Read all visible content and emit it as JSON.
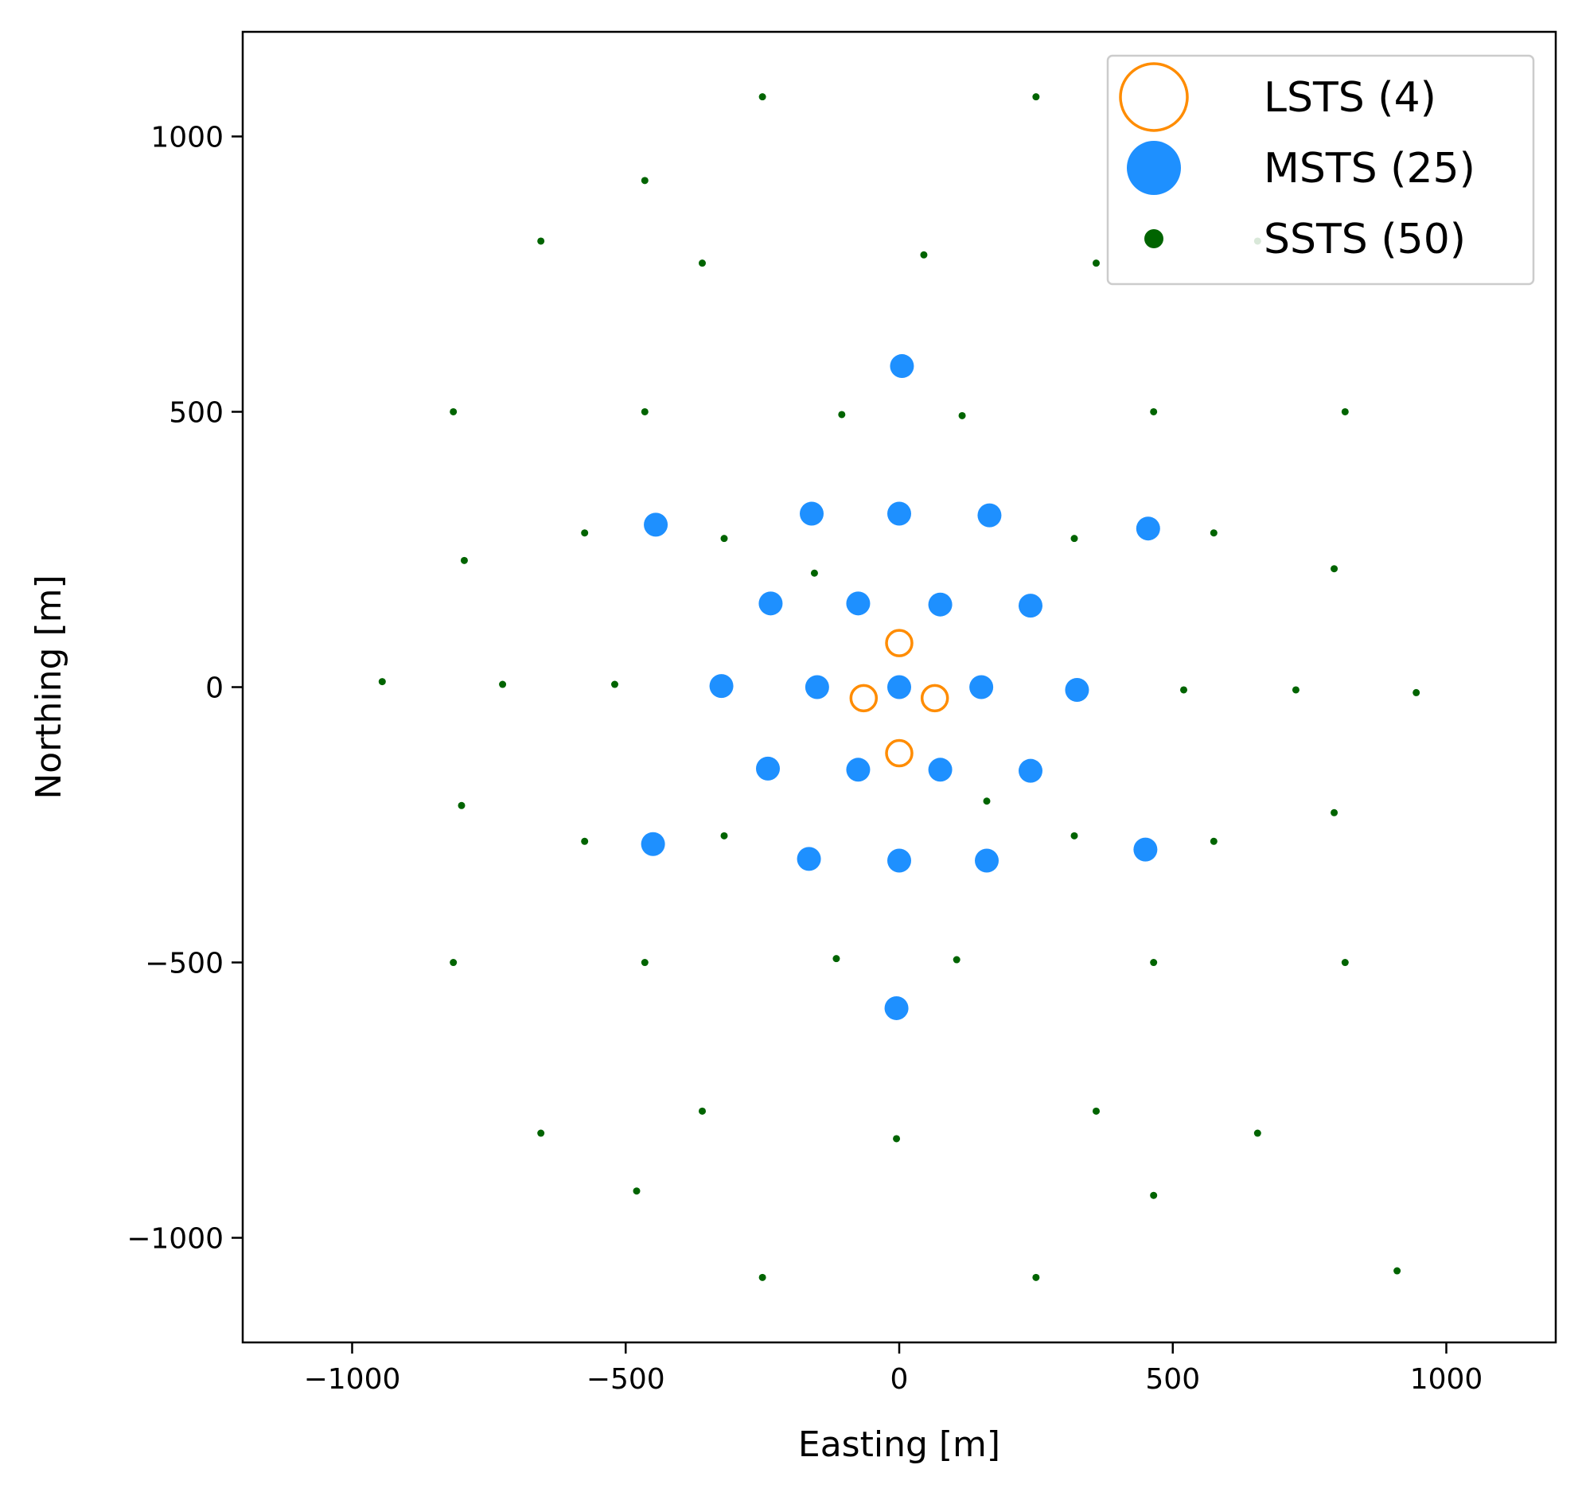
{
  "chart_data": {
    "type": "scatter",
    "title": "",
    "xlabel": "Easting [m]",
    "ylabel": "Northing [m]",
    "xlim": [
      -1200,
      1200
    ],
    "ylim": [
      -1190,
      1190
    ],
    "xticks": [
      -1000,
      -500,
      0,
      500,
      1000
    ],
    "yticks": [
      -1000,
      -500,
      0,
      500,
      1000
    ],
    "xtick_labels": [
      "−1000",
      "−500",
      "0",
      "500",
      "1000"
    ],
    "ytick_labels": [
      "−1000",
      "−500",
      "0",
      "500",
      "1000"
    ],
    "grid": false,
    "legend_position": "top-right",
    "series": [
      {
        "name": "LSTS (4)",
        "marker": "hollow-circle-large",
        "color": "#ff8c00",
        "points": [
          [
            0,
            80
          ],
          [
            -65,
            -20
          ],
          [
            65,
            -20
          ],
          [
            0,
            -120
          ]
        ]
      },
      {
        "name": "MSTS (25)",
        "marker": "filled-circle-medium",
        "color": "#1e90ff",
        "points": [
          [
            0,
            0
          ],
          [
            150,
            0
          ],
          [
            -150,
            0
          ],
          [
            325,
            -5
          ],
          [
            -325,
            2
          ],
          [
            75,
            150
          ],
          [
            -75,
            152
          ],
          [
            240,
            148
          ],
          [
            -235,
            152
          ],
          [
            75,
            -150
          ],
          [
            -75,
            -150
          ],
          [
            240,
            -152
          ],
          [
            -240,
            -148
          ],
          [
            0,
            315
          ],
          [
            165,
            312
          ],
          [
            -160,
            315
          ],
          [
            455,
            288
          ],
          [
            -445,
            295
          ],
          [
            0,
            -315
          ],
          [
            160,
            -315
          ],
          [
            -165,
            -312
          ],
          [
            450,
            -295
          ],
          [
            -450,
            -285
          ],
          [
            5,
            583
          ],
          [
            -5,
            -583
          ]
        ]
      },
      {
        "name": "SSTS (50)",
        "marker": "dot-small",
        "color": "#006400",
        "points": [
          [
            -250,
            1072
          ],
          [
            250,
            1072
          ],
          [
            -465,
            920
          ],
          [
            -655,
            810
          ],
          [
            -360,
            770
          ],
          [
            45,
            785
          ],
          [
            360,
            770
          ],
          [
            655,
            810
          ],
          [
            -815,
            500
          ],
          [
            -465,
            500
          ],
          [
            -105,
            495
          ],
          [
            115,
            493
          ],
          [
            465,
            500
          ],
          [
            815,
            500
          ],
          [
            -575,
            280
          ],
          [
            -320,
            270
          ],
          [
            320,
            270
          ],
          [
            575,
            280
          ],
          [
            -795,
            230
          ],
          [
            -155,
            207
          ],
          [
            795,
            215
          ],
          [
            -945,
            10
          ],
          [
            -725,
            5
          ],
          [
            -520,
            5
          ],
          [
            520,
            -5
          ],
          [
            725,
            -5
          ],
          [
            945,
            -10
          ],
          [
            -800,
            -215
          ],
          [
            160,
            -207
          ],
          [
            795,
            -228
          ],
          [
            -575,
            -280
          ],
          [
            -320,
            -270
          ],
          [
            320,
            -270
          ],
          [
            575,
            -280
          ],
          [
            -815,
            -500
          ],
          [
            -465,
            -500
          ],
          [
            -115,
            -493
          ],
          [
            105,
            -495
          ],
          [
            465,
            -500
          ],
          [
            815,
            -500
          ],
          [
            -360,
            -770
          ],
          [
            360,
            -770
          ],
          [
            -655,
            -810
          ],
          [
            655,
            -810
          ],
          [
            -5,
            -820
          ],
          [
            -480,
            -915
          ],
          [
            465,
            -923
          ],
          [
            -250,
            -1072
          ],
          [
            250,
            -1072
          ],
          [
            910,
            -1060
          ]
        ]
      }
    ]
  },
  "colors": {
    "lsts": "#ff8c00",
    "msts": "#1e90ff",
    "ssts": "#006400",
    "axes": "#000000",
    "legend_border": "#cccccc"
  }
}
